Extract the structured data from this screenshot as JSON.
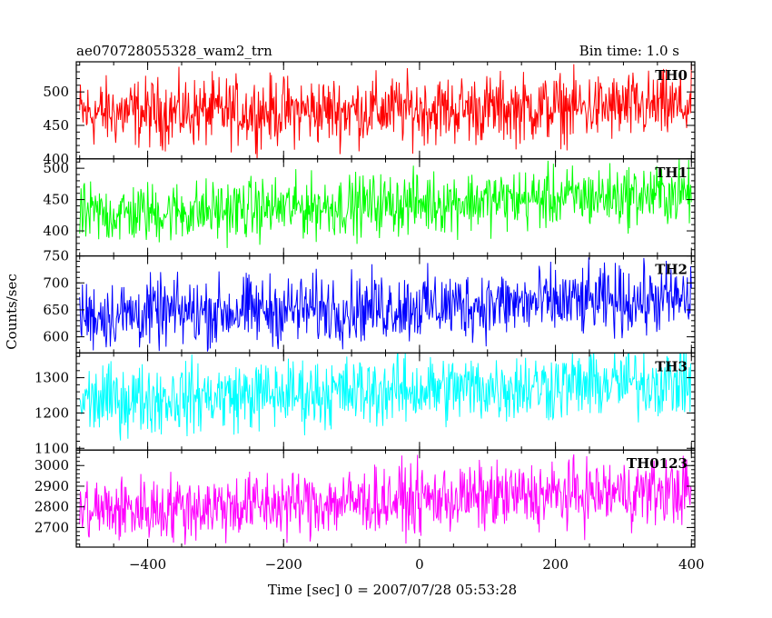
{
  "header": {
    "title": "ae070728055328_wam2_trn",
    "bin_time": "Bin time: 1.0 s"
  },
  "chart_data": {
    "type": "line",
    "xlabel": "Time [sec] 0 = 2007/07/28 05:53:28",
    "ylabel": "Counts/sec",
    "xlim": [
      -505,
      405
    ],
    "x_ticks": [
      -400,
      -200,
      0,
      200,
      400
    ],
    "x_tick_labels": [
      "−400",
      "−200",
      "0",
      "200",
      "400"
    ],
    "bin_seconds": 1.0,
    "grid": false,
    "panels": [
      {
        "name": "TH0",
        "color": "#ff0000",
        "ylim": [
          400,
          545
        ],
        "y_ticks": [
          400,
          450,
          500
        ],
        "y_tick_labels": [
          "400",
          "450",
          "500"
        ],
        "mean_start": 468,
        "mean_end": 478,
        "noise_amplitude": 44
      },
      {
        "name": "TH1",
        "color": "#00ff00",
        "ylim": [
          360,
          515
        ],
        "y_ticks": [
          400,
          450,
          500
        ],
        "y_tick_labels": [
          "400",
          "450",
          "500"
        ],
        "mean_start": 425,
        "mean_end": 460,
        "noise_amplitude": 42
      },
      {
        "name": "TH2",
        "color": "#0000ff",
        "ylim": [
          570,
          750
        ],
        "y_ticks": [
          600,
          650,
          700,
          750
        ],
        "y_tick_labels": [
          "600",
          "650",
          "700",
          "750"
        ],
        "mean_start": 640,
        "mean_end": 670,
        "noise_amplitude": 55
      },
      {
        "name": "TH3",
        "color": "#00ffff",
        "ylim": [
          1095,
          1370
        ],
        "y_ticks": [
          1100,
          1200,
          1300
        ],
        "y_tick_labels": [
          "1100",
          "1200",
          "1300"
        ],
        "mean_start": 1235,
        "mean_end": 1290,
        "noise_amplitude": 85
      },
      {
        "name": "TH0123",
        "color": "#ff00ff",
        "ylim": [
          2605,
          3075
        ],
        "y_ticks": [
          2700,
          2800,
          2900,
          3000
        ],
        "y_tick_labels": [
          "2700",
          "2800",
          "2900",
          "3000"
        ],
        "mean_start": 2780,
        "mean_end": 2880,
        "noise_amplitude": 140
      }
    ]
  }
}
